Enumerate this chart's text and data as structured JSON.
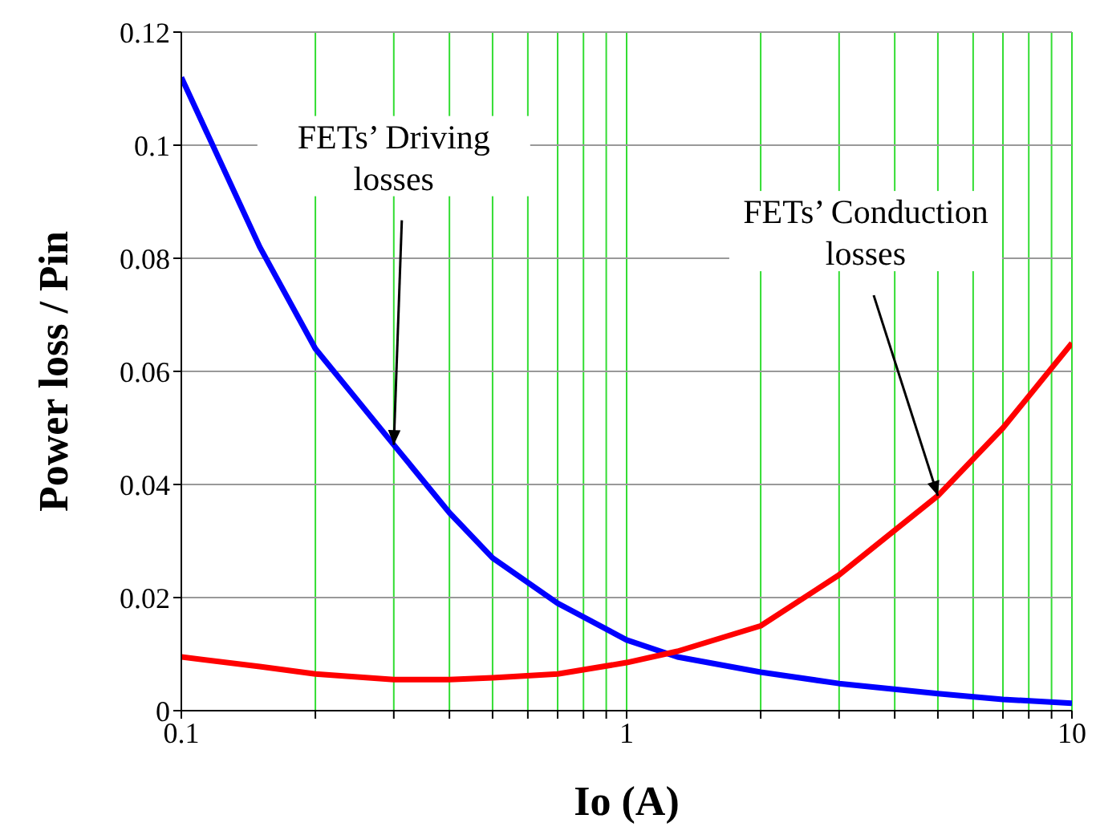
{
  "chart_data": {
    "type": "line",
    "xlabel": "Io (A)",
    "ylabel": "Power loss / Pin",
    "x": [
      0.1,
      0.15,
      0.2,
      0.3,
      0.4,
      0.5,
      0.7,
      1,
      1.3,
      2,
      3,
      5,
      7,
      10
    ],
    "series": [
      {
        "color": "#0000ff",
        "values": [
          0.112,
          0.082,
          0.064,
          0.047,
          0.035,
          0.027,
          0.019,
          0.0125,
          0.0095,
          0.0068,
          0.0048,
          0.003,
          0.002,
          0.0013
        ]
      },
      {
        "color": "#ff0000",
        "values": [
          0.0095,
          0.0078,
          0.0065,
          0.0055,
          0.0055,
          0.0058,
          0.0065,
          0.0085,
          0.0105,
          0.015,
          0.024,
          0.038,
          0.05,
          0.065
        ]
      }
    ],
    "log": "x",
    "xlim": [
      0.1,
      10
    ],
    "xticks": [
      0.1,
      {
        "value": 0.2,
        "label": null
      },
      {
        "value": 0.3,
        "label": null
      },
      {
        "value": 0.4,
        "label": null
      },
      {
        "value": 0.5,
        "label": null
      },
      {
        "value": 0.6,
        "label": null
      },
      {
        "value": 0.7,
        "label": null
      },
      {
        "value": 0.8,
        "label": null
      },
      {
        "value": 0.9,
        "label": null
      },
      1,
      {
        "value": 2,
        "label": null
      },
      {
        "value": 3,
        "label": null
      },
      {
        "value": 4,
        "label": null
      },
      {
        "value": 5,
        "label": null
      },
      {
        "value": 6,
        "label": null
      },
      {
        "value": 7,
        "label": null
      },
      {
        "value": 8,
        "label": null
      },
      {
        "value": 9,
        "label": null
      },
      10
    ],
    "ylim": [
      0,
      0.12
    ],
    "yticks": [
      0,
      0.02,
      0.04,
      0.06,
      0.08,
      0.1,
      0.12
    ],
    "grid": true,
    "marker": "none",
    "line_style": "solid",
    "annotations": [
      {
        "text": "FETs’ Driving losses",
        "x": 0.3,
        "y": 0.047
      },
      {
        "text": "FETs’ Conduction losses",
        "x": 5,
        "y": 0.038
      }
    ]
  }
}
